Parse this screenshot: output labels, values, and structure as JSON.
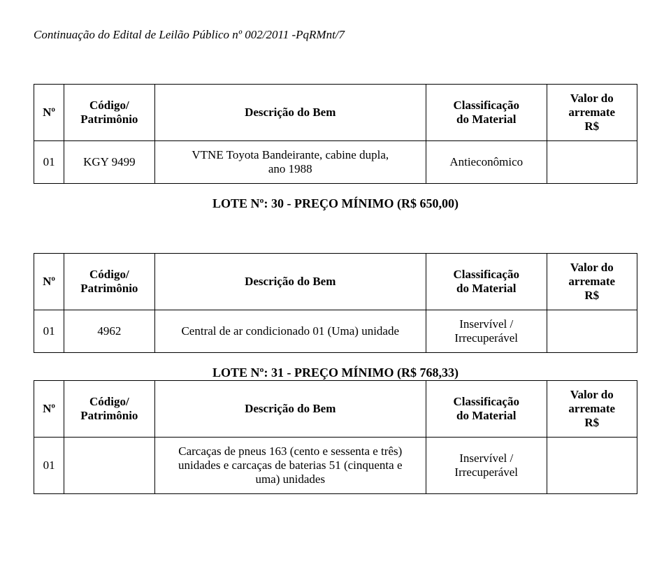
{
  "page_header": "Continuação do Edital de Leilão Público nº 002/2011 -PqRMnt/7",
  "columns": {
    "n": "Nº",
    "codigo": "Código/\nPatrimônio",
    "descricao": "Descrição do Bem",
    "classificacao": "Classificação\ndo Material",
    "valor": "Valor do\narremate\nR$"
  },
  "lotes": [
    {
      "rows": [
        {
          "n": "01",
          "codigo": "KGY 9499",
          "descricao": "VTNE Toyota Bandeirante, cabine dupla,\nano 1988",
          "classificacao": "Antieconômico",
          "valor": ""
        }
      ],
      "title": "LOTE Nº: 30 - PREÇO MÍNIMO (R$ 650,00)"
    },
    {
      "rows": [
        {
          "n": "01",
          "codigo": "4962",
          "descricao": "Central de ar condicionado 01 (Uma) unidade",
          "classificacao": "Inservível /\nIrrecuperável",
          "valor": ""
        }
      ],
      "title": "LOTE Nº: 31 - PREÇO MÍNIMO (R$ 768,33)"
    },
    {
      "rows": [
        {
          "n": "01",
          "codigo": "",
          "descricao": "Carcaças de pneus 163 (cento e sessenta e três)\nunidades e carcaças de baterias 51 (cinquenta e\numa) unidades",
          "classificacao": "Inservível /\nIrrecuperável",
          "valor": ""
        }
      ],
      "title": ""
    }
  ]
}
